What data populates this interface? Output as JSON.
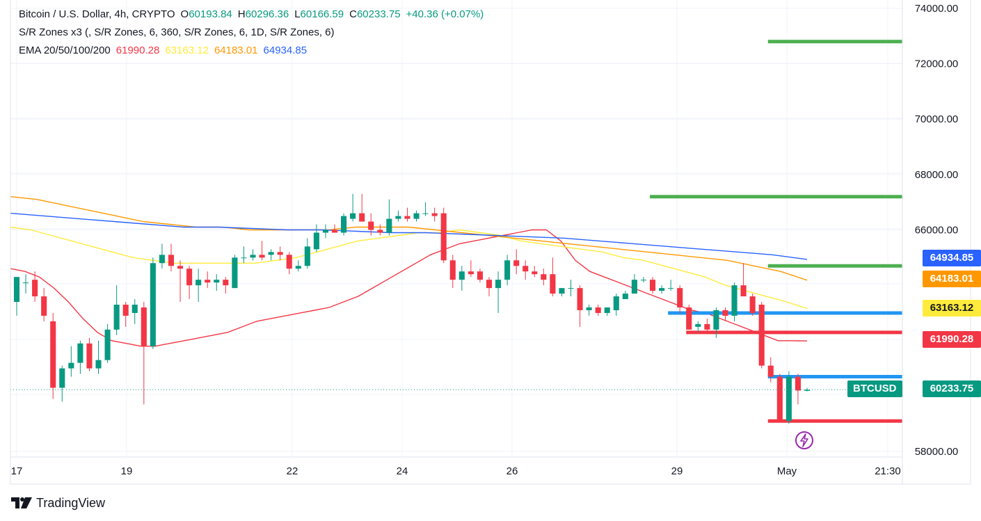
{
  "legend": {
    "title": "Bitcoin / U.S. Dollar, 4h, CRYPTO",
    "open_key": "O",
    "open": "60193.84",
    "high_key": "H",
    "high": "60296.36",
    "low_key": "L",
    "low": "60166.59",
    "close_key": "C",
    "close": "60233.75",
    "change": "+40.36 (+0.07%)",
    "sr_label": "S/R Zones x3 (, S/R Zones, 6, 360, S/R Zones, 6, 1D, S/R Zones, 6)",
    "ema_label": "EMA 20/50/100/200",
    "ema20": "61990.28",
    "ema50": "63163.12",
    "ema100": "64183.01",
    "ema200": "64934.85"
  },
  "price_axis": {
    "ticks": [
      "74000.00",
      "72000.00",
      "70000.00",
      "68000.00",
      "66000.00",
      "58000.00"
    ]
  },
  "time_axis": {
    "ticks": [
      "17",
      "19",
      "22",
      "24",
      "26",
      "29",
      "May",
      "21:30"
    ]
  },
  "tags": {
    "symbol": "BTCUSD",
    "last_price": "60233.75",
    "ema200": "64934.85",
    "ema100": "64183.01",
    "ema50": "63163.12",
    "ema20": "61990.28"
  },
  "brand": {
    "name": "TradingView"
  },
  "colors": {
    "up": "#089981",
    "down": "#f23645",
    "ema20": "#f23645",
    "ema50": "#ffeb3b",
    "ema100": "#ff9800",
    "ema200": "#2962ff",
    "support_green": "#4caf50",
    "zone_blue": "#2196f3",
    "zone_red": "#f23645"
  },
  "chart_data": {
    "type": "candlestick",
    "symbol": "BTCUSD",
    "interval": "4h",
    "ylim": [
      57800,
      74300
    ],
    "x_tick_labels": [
      "17",
      "19",
      "22",
      "24",
      "26",
      "29",
      "May",
      "21:30"
    ],
    "candles": [
      {
        "o": 63400,
        "h": 64200,
        "l": 62900,
        "c": 64300
      },
      {
        "o": 64100,
        "h": 64400,
        "l": 63700,
        "c": 64100
      },
      {
        "o": 64200,
        "h": 64500,
        "l": 63400,
        "c": 63600
      },
      {
        "o": 63600,
        "h": 63900,
        "l": 62700,
        "c": 62900
      },
      {
        "o": 62700,
        "h": 63000,
        "l": 59900,
        "c": 60300
      },
      {
        "o": 60300,
        "h": 61100,
        "l": 59800,
        "c": 61000
      },
      {
        "o": 61000,
        "h": 61800,
        "l": 60700,
        "c": 61200
      },
      {
        "o": 61200,
        "h": 62000,
        "l": 60800,
        "c": 61900
      },
      {
        "o": 61900,
        "h": 62100,
        "l": 60900,
        "c": 61000
      },
      {
        "o": 61000,
        "h": 62000,
        "l": 60800,
        "c": 61300
      },
      {
        "o": 61300,
        "h": 62600,
        "l": 61200,
        "c": 62400
      },
      {
        "o": 62400,
        "h": 64000,
        "l": 62200,
        "c": 63300
      },
      {
        "o": 63300,
        "h": 63400,
        "l": 62500,
        "c": 62900
      },
      {
        "o": 63000,
        "h": 63500,
        "l": 62600,
        "c": 63300
      },
      {
        "o": 63200,
        "h": 63400,
        "l": 59700,
        "c": 61800
      },
      {
        "o": 61800,
        "h": 65000,
        "l": 61700,
        "c": 64800
      },
      {
        "o": 64800,
        "h": 65500,
        "l": 64600,
        "c": 65100
      },
      {
        "o": 65100,
        "h": 65500,
        "l": 64500,
        "c": 64700
      },
      {
        "o": 64700,
        "h": 64900,
        "l": 63400,
        "c": 64600
      },
      {
        "o": 64600,
        "h": 64700,
        "l": 63500,
        "c": 64000
      },
      {
        "o": 64000,
        "h": 64600,
        "l": 63400,
        "c": 64200
      },
      {
        "o": 64200,
        "h": 64500,
        "l": 63900,
        "c": 64100
      },
      {
        "o": 64100,
        "h": 64400,
        "l": 63800,
        "c": 64200
      },
      {
        "o": 64200,
        "h": 64300,
        "l": 63700,
        "c": 64000
      },
      {
        "o": 63900,
        "h": 65100,
        "l": 63900,
        "c": 65000
      },
      {
        "o": 65000,
        "h": 65400,
        "l": 64800,
        "c": 65000
      },
      {
        "o": 65000,
        "h": 65300,
        "l": 64900,
        "c": 65100
      },
      {
        "o": 65100,
        "h": 65600,
        "l": 64900,
        "c": 65000
      },
      {
        "o": 65100,
        "h": 65300,
        "l": 64900,
        "c": 65200
      },
      {
        "o": 65200,
        "h": 65400,
        "l": 64900,
        "c": 65100
      },
      {
        "o": 65100,
        "h": 65200,
        "l": 64400,
        "c": 64600
      },
      {
        "o": 64600,
        "h": 64900,
        "l": 64500,
        "c": 64700
      },
      {
        "o": 64700,
        "h": 65700,
        "l": 64600,
        "c": 65400
      },
      {
        "o": 65300,
        "h": 66200,
        "l": 65200,
        "c": 65900
      },
      {
        "o": 65900,
        "h": 66200,
        "l": 65700,
        "c": 66000
      },
      {
        "o": 66000,
        "h": 66200,
        "l": 65900,
        "c": 65900
      },
      {
        "o": 65900,
        "h": 66600,
        "l": 65800,
        "c": 66500
      },
      {
        "o": 66400,
        "h": 67300,
        "l": 66300,
        "c": 66600
      },
      {
        "o": 66600,
        "h": 67300,
        "l": 66400,
        "c": 66300
      },
      {
        "o": 66300,
        "h": 66600,
        "l": 65800,
        "c": 66000
      },
      {
        "o": 66000,
        "h": 66200,
        "l": 65800,
        "c": 65900
      },
      {
        "o": 65900,
        "h": 67100,
        "l": 65800,
        "c": 66400
      },
      {
        "o": 66400,
        "h": 66700,
        "l": 66300,
        "c": 66500
      },
      {
        "o": 66500,
        "h": 66800,
        "l": 66300,
        "c": 66400
      },
      {
        "o": 66400,
        "h": 66700,
        "l": 66300,
        "c": 66600
      },
      {
        "o": 66600,
        "h": 67000,
        "l": 66500,
        "c": 66600
      },
      {
        "o": 66600,
        "h": 66800,
        "l": 66300,
        "c": 66500
      },
      {
        "o": 66600,
        "h": 66800,
        "l": 64800,
        "c": 64900
      },
      {
        "o": 64900,
        "h": 65100,
        "l": 63900,
        "c": 64200
      },
      {
        "o": 64200,
        "h": 64700,
        "l": 63800,
        "c": 64500
      },
      {
        "o": 64500,
        "h": 64900,
        "l": 64300,
        "c": 64400
      },
      {
        "o": 64500,
        "h": 64600,
        "l": 64100,
        "c": 64200
      },
      {
        "o": 64200,
        "h": 64300,
        "l": 63600,
        "c": 63900
      },
      {
        "o": 63900,
        "h": 64500,
        "l": 63000,
        "c": 64200
      },
      {
        "o": 64200,
        "h": 65100,
        "l": 64000,
        "c": 64900
      },
      {
        "o": 64900,
        "h": 65300,
        "l": 64400,
        "c": 64700
      },
      {
        "o": 64700,
        "h": 64900,
        "l": 64200,
        "c": 64500
      },
      {
        "o": 64500,
        "h": 64700,
        "l": 64300,
        "c": 64400
      },
      {
        "o": 64400,
        "h": 64600,
        "l": 64000,
        "c": 64200
      },
      {
        "o": 64400,
        "h": 65000,
        "l": 63600,
        "c": 63700
      },
      {
        "o": 63700,
        "h": 63900,
        "l": 63600,
        "c": 63900
      },
      {
        "o": 63900,
        "h": 64200,
        "l": 63600,
        "c": 63900
      },
      {
        "o": 63900,
        "h": 64000,
        "l": 62500,
        "c": 63100
      },
      {
        "o": 63100,
        "h": 63300,
        "l": 62900,
        "c": 63200
      },
      {
        "o": 63200,
        "h": 63300,
        "l": 62900,
        "c": 63000
      },
      {
        "o": 63000,
        "h": 63200,
        "l": 62900,
        "c": 63200
      },
      {
        "o": 63100,
        "h": 63700,
        "l": 62900,
        "c": 63600
      },
      {
        "o": 63500,
        "h": 63800,
        "l": 63500,
        "c": 63700
      },
      {
        "o": 63700,
        "h": 64400,
        "l": 63700,
        "c": 64200
      },
      {
        "o": 64200,
        "h": 64300,
        "l": 64100,
        "c": 64200
      },
      {
        "o": 64200,
        "h": 64300,
        "l": 63700,
        "c": 63800
      },
      {
        "o": 63800,
        "h": 64000,
        "l": 63700,
        "c": 63900
      },
      {
        "o": 63900,
        "h": 64200,
        "l": 63800,
        "c": 63900
      },
      {
        "o": 63900,
        "h": 64000,
        "l": 63000,
        "c": 63200
      },
      {
        "o": 63200,
        "h": 63300,
        "l": 62400,
        "c": 62400
      },
      {
        "o": 62500,
        "h": 62700,
        "l": 62300,
        "c": 62600
      },
      {
        "o": 62600,
        "h": 62800,
        "l": 62300,
        "c": 62400
      },
      {
        "o": 62400,
        "h": 63200,
        "l": 62100,
        "c": 63100
      },
      {
        "o": 63100,
        "h": 63200,
        "l": 62700,
        "c": 62900
      },
      {
        "o": 62900,
        "h": 64100,
        "l": 62700,
        "c": 64000
      },
      {
        "o": 64000,
        "h": 64800,
        "l": 63700,
        "c": 63600
      },
      {
        "o": 63600,
        "h": 63700,
        "l": 62900,
        "c": 63000
      },
      {
        "o": 63300,
        "h": 63400,
        "l": 61000,
        "c": 61100
      },
      {
        "o": 61100,
        "h": 61400,
        "l": 60500,
        "c": 60700
      },
      {
        "o": 60700,
        "h": 60800,
        "l": 59100,
        "c": 59100
      },
      {
        "o": 59100,
        "h": 60900,
        "l": 59000,
        "c": 60700
      },
      {
        "o": 60700,
        "h": 60800,
        "l": 59700,
        "c": 60200
      },
      {
        "o": 60190,
        "h": 60300,
        "l": 60170,
        "c": 60230
      }
    ],
    "ema": {
      "ema20": [
        64600,
        64500,
        64300,
        63900,
        63400,
        62800,
        62300,
        62000,
        61900,
        61800,
        61800,
        61900,
        62000,
        62100,
        62200,
        62300,
        62500,
        62700,
        62800,
        62900,
        63000,
        63100,
        63200,
        63400,
        63600,
        63900,
        64200,
        64500,
        64800,
        65100,
        65300,
        65500,
        65600,
        65700,
        65800,
        65900,
        66000,
        66000,
        65600,
        64900,
        64500,
        64300,
        64100,
        63900,
        63700,
        63500,
        63300,
        63100,
        63000,
        62800,
        62600,
        62400,
        62200,
        62000,
        62000,
        61990
      ],
      "ema50": [
        66100,
        66000,
        65800,
        65600,
        65400,
        65200,
        65000,
        64900,
        64800,
        64800,
        64800,
        64800,
        64800,
        64900,
        65000,
        65200,
        65400,
        65600,
        65700,
        65800,
        65900,
        65900,
        66000,
        65900,
        65800,
        65600,
        65500,
        65400,
        65300,
        65200,
        65000,
        64900,
        64700,
        64500,
        64300,
        64000,
        63800,
        63600,
        63400,
        63163
      ],
      "ema100": [
        67200,
        67100,
        66900,
        66700,
        66500,
        66300,
        66200,
        66100,
        66100,
        66000,
        66000,
        66000,
        66000,
        66100,
        66100,
        66100,
        66000,
        65900,
        65800,
        65700,
        65600,
        65500,
        65400,
        65300,
        65200,
        65100,
        65000,
        64900,
        64700,
        64500,
        64183
      ],
      "ema200": [
        66600,
        66500,
        66400,
        66300,
        66200,
        66100,
        66100,
        66050,
        66000,
        66000,
        65950,
        65900,
        65900,
        65850,
        65800,
        65750,
        65700,
        65600,
        65500,
        65400,
        65300,
        65200,
        65100,
        64934.85
      ]
    },
    "sr_zones": [
      {
        "color": "support_green",
        "level": 72800,
        "from_candle": 83
      },
      {
        "color": "support_green",
        "level": 67200,
        "from_candle": 70
      },
      {
        "color": "support_green",
        "level": 64700,
        "from_candle": 83
      },
      {
        "color": "zone_blue",
        "level": 63000,
        "from_candle": 72
      },
      {
        "color": "zone_red",
        "level": 62300,
        "from_candle": 74
      },
      {
        "color": "zone_blue",
        "level": 60700,
        "from_candle": 83
      },
      {
        "color": "zone_red",
        "level": 59100,
        "from_candle": 83
      }
    ],
    "last_price": 60233.75
  }
}
